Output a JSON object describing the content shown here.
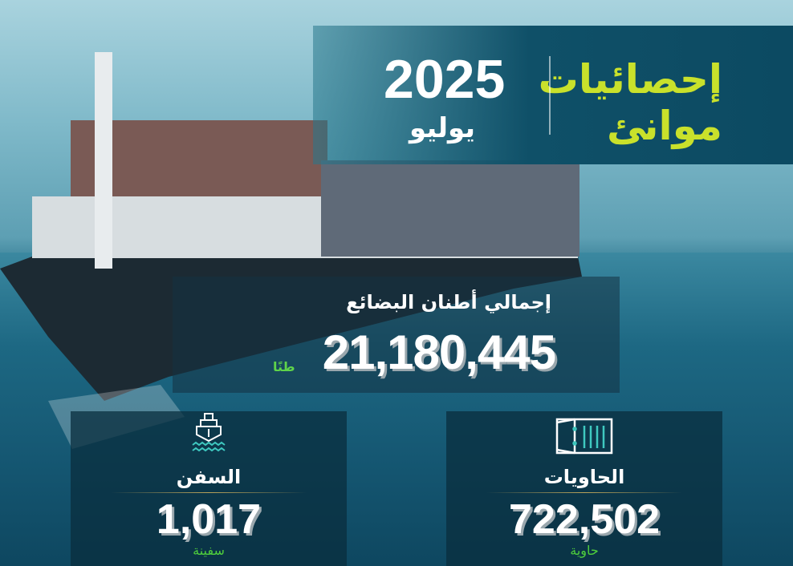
{
  "header": {
    "title_line1": "إحصائيات",
    "title_line2": "موانئ",
    "year": "2025",
    "month": "يوليو"
  },
  "total_cargo": {
    "label": "إجمالي أطنان البضائع",
    "value": "21,180,445",
    "unit": "طنًا"
  },
  "stats": [
    {
      "label": "السفن",
      "value": "1,017",
      "unit": "سفينة",
      "icon": "ship-icon"
    },
    {
      "label": "الحاويات",
      "value": "722,502",
      "unit": "حاوية",
      "icon": "container-icon"
    }
  ],
  "colors": {
    "title": "#c9e12b",
    "unit": "#4fcf3c",
    "panel": "#0f5068"
  }
}
